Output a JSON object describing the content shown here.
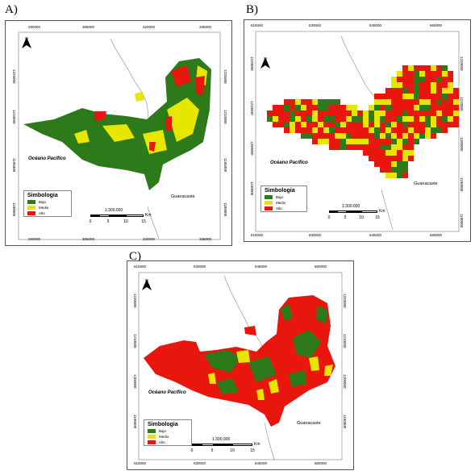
{
  "colors": {
    "bajo": "#2d7a1a",
    "medio": "#e6e600",
    "alto": "#e8160c",
    "coast": "#8a8a8a"
  },
  "legend": {
    "title": "Simbologia",
    "items": [
      {
        "label": "Bajo",
        "color": "#2d7a1a"
      },
      {
        "label": "Medio",
        "color": "#e6e600"
      },
      {
        "label": "Alto",
        "color": "#e8160c"
      }
    ]
  },
  "scale": {
    "ratio": "1:300.000",
    "ticks": [
      "0",
      "5",
      "10",
      "15"
    ],
    "unit": "Km"
  },
  "labels": {
    "ocean": "Océano Pacífico",
    "province": "Guanacaste",
    "north": "N"
  },
  "panels": {
    "A": {
      "letter": "A)",
      "x_ticks": [
        "290000",
        "305000",
        "320000",
        "335000"
      ],
      "y_ticks": [
        "1225000",
        "1210000",
        "1195000",
        "1180000"
      ]
    },
    "B": {
      "letter": "B)",
      "x_ticks": [
        "615000",
        "630000",
        "645000",
        "660000"
      ],
      "y_ticks": [
        "1220000",
        "1210000",
        "1200000",
        "1190000",
        "1180000"
      ]
    },
    "C": {
      "letter": "C)",
      "x_ticks": [
        "615000",
        "630000",
        "645000",
        "660000"
      ],
      "y_ticks": [
        "1220000",
        "1210000",
        "1200000",
        "1190000"
      ]
    }
  }
}
